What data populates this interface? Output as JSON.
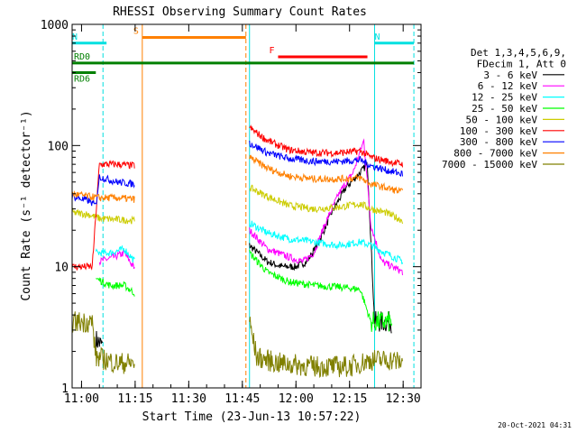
{
  "chart_data": {
    "type": "line",
    "title": "RHESSI Observing Summary Count Rates",
    "xlabel": "Start Time (23-Jun-13 10:57:22)",
    "ylabel": "Count Rate (s⁻¹ detector⁻¹)",
    "xlim": [
      "10:57:22",
      "12:35:00"
    ],
    "ylim": [
      1,
      1000
    ],
    "yscale": "log",
    "x_ticks": [
      "11:00",
      "11:15",
      "11:30",
      "11:45",
      "12:00",
      "12:15",
      "12:30"
    ],
    "y_ticks": [
      {
        "v": 1,
        "t": "1"
      },
      {
        "v": 10,
        "t": "10"
      },
      {
        "v": 100,
        "t": "100"
      },
      {
        "v": 1000,
        "t": "1000"
      }
    ],
    "legend": {
      "header": [
        "Det 1,3,4,5,6,9,",
        "FDecim 1, Att 0"
      ],
      "placement": "right"
    },
    "series": [
      {
        "name": "3 - 6 keV",
        "color": "#000000",
        "points": [
          [
            "10:57:22",
            null
          ],
          [
            "11:04",
            2.5
          ],
          [
            "11:06",
            2.2
          ],
          [
            "11:07",
            null
          ],
          [
            "11:22",
            null
          ],
          [
            "11:46",
            null
          ],
          [
            "11:47",
            15
          ],
          [
            "11:52",
            11
          ],
          [
            "11:56",
            10
          ],
          [
            "12:00",
            10
          ],
          [
            "12:03",
            11
          ],
          [
            "12:06",
            15
          ],
          [
            "12:10",
            28
          ],
          [
            "12:14",
            45
          ],
          [
            "12:18",
            60
          ],
          [
            "12:20",
            70
          ],
          [
            "12:22",
            3.5
          ],
          [
            "12:27",
            3.5
          ],
          [
            "12:30",
            null
          ]
        ]
      },
      {
        "name": "6 - 12 keV",
        "color": "#ff00ff",
        "points": [
          [
            "10:57:22",
            null
          ],
          [
            "11:05",
            11
          ],
          [
            "11:09",
            12
          ],
          [
            "11:12",
            13
          ],
          [
            "11:15",
            9.5
          ],
          [
            "11:16",
            null
          ],
          [
            "11:46",
            null
          ],
          [
            "11:47",
            20
          ],
          [
            "11:52",
            14
          ],
          [
            "11:58",
            12
          ],
          [
            "12:02",
            11
          ],
          [
            "12:05",
            13
          ],
          [
            "12:08",
            22
          ],
          [
            "12:12",
            40
          ],
          [
            "12:16",
            60
          ],
          [
            "12:19",
            110
          ],
          [
            "12:21",
            22
          ],
          [
            "12:24",
            11
          ],
          [
            "12:27",
            10
          ],
          [
            "12:30",
            9
          ]
        ]
      },
      {
        "name": "12 - 25 keV",
        "color": "#00ffff",
        "points": [
          [
            "10:57:22",
            null
          ],
          [
            "11:04",
            13
          ],
          [
            "11:08",
            13
          ],
          [
            "11:12",
            14
          ],
          [
            "11:15",
            11
          ],
          [
            "11:16",
            null
          ],
          [
            "11:46",
            null
          ],
          [
            "11:47",
            23
          ],
          [
            "11:52",
            19
          ],
          [
            "11:58",
            17
          ],
          [
            "12:05",
            16
          ],
          [
            "12:12",
            15
          ],
          [
            "12:18",
            16
          ],
          [
            "12:21",
            15
          ],
          [
            "12:25",
            13
          ],
          [
            "12:30",
            11
          ]
        ]
      },
      {
        "name": "25 - 50 keV",
        "color": "#00ff00",
        "points": [
          [
            "10:57:22",
            null
          ],
          [
            "11:04",
            8
          ],
          [
            "11:08",
            7
          ],
          [
            "11:12",
            7
          ],
          [
            "11:15",
            6
          ],
          [
            "11:16",
            null
          ],
          [
            "11:46",
            null
          ],
          [
            "11:47",
            13
          ],
          [
            "11:52",
            9
          ],
          [
            "11:58",
            7.5
          ],
          [
            "12:05",
            7
          ],
          [
            "12:12",
            6.8
          ],
          [
            "12:18",
            6.5
          ],
          [
            "12:21",
            3.5
          ],
          [
            "12:27",
            3.5
          ],
          [
            "12:30",
            null
          ]
        ]
      },
      {
        "name": "50 - 100 keV",
        "color": "#cccc00",
        "points": [
          [
            "10:57:22",
            28
          ],
          [
            "11:02",
            27
          ],
          [
            "11:05",
            25
          ],
          [
            "11:15",
            24
          ],
          [
            "11:16",
            null
          ],
          [
            "11:46",
            null
          ],
          [
            "11:47",
            45
          ],
          [
            "11:52",
            38
          ],
          [
            "11:58",
            32
          ],
          [
            "12:05",
            30
          ],
          [
            "12:12",
            31
          ],
          [
            "12:18",
            33
          ],
          [
            "12:21",
            30
          ],
          [
            "12:25",
            28
          ],
          [
            "12:30",
            24
          ]
        ]
      },
      {
        "name": "100 - 300 keV",
        "color": "#ff0000",
        "points": [
          [
            "10:57:22",
            10
          ],
          [
            "11:03",
            10
          ],
          [
            "11:05",
            70
          ],
          [
            "11:10",
            70
          ],
          [
            "11:15",
            68
          ],
          [
            "11:16",
            null
          ],
          [
            "11:46",
            null
          ],
          [
            "11:47",
            140
          ],
          [
            "11:52",
            110
          ],
          [
            "11:58",
            92
          ],
          [
            "12:05",
            87
          ],
          [
            "12:12",
            87
          ],
          [
            "12:18",
            90
          ],
          [
            "12:21",
            80
          ],
          [
            "12:25",
            75
          ],
          [
            "12:30",
            70
          ]
        ]
      },
      {
        "name": "300 - 800 keV",
        "color": "#0000ff",
        "points": [
          [
            "10:57:22",
            38
          ],
          [
            "11:02",
            35
          ],
          [
            "11:04",
            32
          ],
          [
            "11:05",
            55
          ],
          [
            "11:10",
            50
          ],
          [
            "11:15",
            48
          ],
          [
            "11:16",
            null
          ],
          [
            "11:46",
            null
          ],
          [
            "11:47",
            105
          ],
          [
            "11:52",
            87
          ],
          [
            "11:58",
            78
          ],
          [
            "12:05",
            74
          ],
          [
            "12:12",
            74
          ],
          [
            "12:18",
            76
          ],
          [
            "12:21",
            68
          ],
          [
            "12:25",
            63
          ],
          [
            "12:30",
            58
          ]
        ]
      },
      {
        "name": "800 - 7000 keV",
        "color": "#ff8000",
        "points": [
          [
            "10:57:22",
            40
          ],
          [
            "11:02",
            38
          ],
          [
            "11:05",
            37
          ],
          [
            "11:10",
            37
          ],
          [
            "11:15",
            36
          ],
          [
            "11:16",
            null
          ],
          [
            "11:46",
            null
          ],
          [
            "11:47",
            80
          ],
          [
            "11:52",
            65
          ],
          [
            "11:58",
            56
          ],
          [
            "12:05",
            53
          ],
          [
            "12:12",
            53
          ],
          [
            "12:18",
            54
          ],
          [
            "12:21",
            48
          ],
          [
            "12:25",
            45
          ],
          [
            "12:30",
            41
          ]
        ]
      },
      {
        "name": "7000 - 15000 keV",
        "color": "#808000",
        "points": [
          [
            "10:57:22",
            3.5
          ],
          [
            "11:03",
            3.5
          ],
          [
            "11:04",
            1.8
          ],
          [
            "11:10",
            1.6
          ],
          [
            "11:15",
            1.6
          ],
          [
            "11:16",
            null
          ],
          [
            "11:46",
            null
          ],
          [
            "11:47",
            3.5
          ],
          [
            "11:49",
            1.8
          ],
          [
            "11:55",
            1.6
          ],
          [
            "12:05",
            1.5
          ],
          [
            "12:15",
            1.5
          ],
          [
            "12:21",
            1.7
          ],
          [
            "12:27",
            1.7
          ],
          [
            "12:30",
            1.6
          ]
        ]
      }
    ],
    "markers": [
      {
        "label": "N",
        "color": "#00e0e0",
        "start": "10:57:22",
        "end": "11:07",
        "level": 700
      },
      {
        "label": "N",
        "color": "#00e0e0",
        "start": "12:22",
        "end": "12:33",
        "level": 700
      },
      {
        "label": "S",
        "color": "#ff8000",
        "start": "11:17",
        "end": "11:46",
        "level": 780
      },
      {
        "label": "F",
        "color": "#ff0000",
        "start": "11:55",
        "end": "12:20",
        "level": 540
      },
      {
        "label": "RD0",
        "color": "#008000",
        "start": "10:57:22",
        "end": "12:33",
        "level": 480
      },
      {
        "label": "RD6",
        "color": "#008000",
        "start": "10:57:22",
        "end": "11:04",
        "level": 400
      }
    ],
    "vlines": [
      {
        "t": "11:06",
        "color": "#00e0e0",
        "style": "dashed"
      },
      {
        "t": "11:17",
        "color": "#ff8000",
        "style": "solid"
      },
      {
        "t": "11:46",
        "color": "#ff8000",
        "style": "dashed"
      },
      {
        "t": "11:47",
        "color": "#00e0e0",
        "style": "solid"
      },
      {
        "t": "12:22",
        "color": "#00e0e0",
        "style": "solid"
      },
      {
        "t": "12:33",
        "color": "#00e0e0",
        "style": "dashed"
      }
    ],
    "grid": false
  },
  "timestamp": "20-Oct-2021 04:31"
}
